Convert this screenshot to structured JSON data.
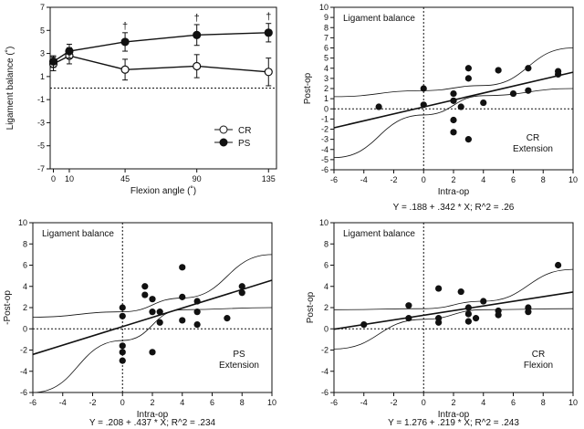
{
  "chart_data": [
    {
      "type": "line",
      "id": "p1",
      "xlabel": "Flexion angle (˚)",
      "ylabel": "Ligament balance (˚)",
      "xlim": [
        -2,
        140
      ],
      "ylim": [
        -7,
        7
      ],
      "xticks": [
        0,
        10,
        45,
        90,
        135
      ],
      "yticks": [
        -7,
        -5,
        -3,
        -1,
        1,
        3,
        5,
        7
      ],
      "zero_line": true,
      "legend": "bottom-right",
      "series": [
        {
          "name": "CR",
          "marker": "open-circle",
          "x": [
            0,
            10,
            45,
            90,
            135
          ],
          "y": [
            2.1,
            2.8,
            1.6,
            1.9,
            1.4
          ],
          "err": [
            0.6,
            0.7,
            0.9,
            1.0,
            1.2
          ]
        },
        {
          "name": "PS",
          "marker": "filled-circle",
          "x": [
            0,
            10,
            45,
            90,
            135
          ],
          "y": [
            2.3,
            3.2,
            4.0,
            4.6,
            4.8
          ],
          "err": [
            0.5,
            0.6,
            0.8,
            0.9,
            0.8
          ]
        }
      ],
      "annotations": [
        {
          "x": 45,
          "text": "†"
        },
        {
          "x": 90,
          "text": "†"
        },
        {
          "x": 135,
          "text": "†"
        }
      ]
    },
    {
      "type": "scatter",
      "id": "p2",
      "title": "Ligament balance",
      "xlabel": "Intra-op",
      "ylabel": "Post-op",
      "group_label_1": "CR",
      "group_label_2": "Extension",
      "equation": "Y = .188 + .342 * X; R^2 = .26",
      "xlim": [
        -6,
        10
      ],
      "ylim": [
        -6,
        10
      ],
      "xticks": [
        -6,
        -4,
        -2,
        0,
        2,
        4,
        6,
        8,
        10
      ],
      "yticks": [
        -6,
        -5,
        -4,
        -3,
        -2,
        -1,
        0,
        1,
        2,
        3,
        4,
        5,
        6,
        7,
        8,
        9,
        10
      ],
      "fit": {
        "intercept": 0.188,
        "slope": 0.342
      },
      "ci_upper": [
        [
          -6,
          1.2
        ],
        [
          0,
          1.8
        ],
        [
          4,
          2.3
        ],
        [
          10,
          6.0
        ]
      ],
      "ci_lower": [
        [
          -6,
          -4.8
        ],
        [
          0,
          -0.6
        ],
        [
          4,
          1.3
        ],
        [
          10,
          2.0
        ]
      ],
      "points": [
        [
          -3,
          0.2
        ],
        [
          0,
          2.0
        ],
        [
          0,
          0.4
        ],
        [
          2,
          1.5
        ],
        [
          2,
          0.8
        ],
        [
          2,
          -1.1
        ],
        [
          2,
          -2.3
        ],
        [
          2.5,
          0.2
        ],
        [
          3,
          4.0
        ],
        [
          3,
          3.0
        ],
        [
          3,
          -3.0
        ],
        [
          4,
          0.6
        ],
        [
          5,
          3.8
        ],
        [
          6,
          1.5
        ],
        [
          7,
          4.0
        ],
        [
          7,
          1.8
        ],
        [
          9,
          3.7
        ],
        [
          9,
          3.4
        ]
      ]
    },
    {
      "type": "scatter",
      "id": "p3",
      "title": "Ligament balance",
      "xlabel": "Intra-op",
      "ylabel": "-Post-op",
      "group_label_1": "PS",
      "group_label_2": "Extension",
      "equation": "Y = .208 + .437 * X; R^2 = .234",
      "xlim": [
        -6,
        10
      ],
      "ylim": [
        -6,
        10
      ],
      "xticks": [
        -6,
        -4,
        -2,
        0,
        2,
        4,
        6,
        8,
        10
      ],
      "yticks": [
        -6,
        -4,
        -2,
        0,
        2,
        4,
        6,
        8,
        10
      ],
      "fit": {
        "intercept": 0.208,
        "slope": 0.437
      },
      "ci_upper": [
        [
          -6,
          1.1
        ],
        [
          0,
          1.6
        ],
        [
          4,
          2.9
        ],
        [
          10,
          7.0
        ]
      ],
      "ci_lower": [
        [
          -6,
          -6.0
        ],
        [
          0,
          -1.1
        ],
        [
          4,
          1.8
        ],
        [
          10,
          2.0
        ]
      ],
      "points": [
        [
          0,
          2.0
        ],
        [
          0,
          1.2
        ],
        [
          0,
          -1.6
        ],
        [
          0,
          -2.2
        ],
        [
          0,
          -3.0
        ],
        [
          1.5,
          4.0
        ],
        [
          1.5,
          3.2
        ],
        [
          2,
          2.8
        ],
        [
          2,
          1.6
        ],
        [
          2,
          -2.2
        ],
        [
          2.5,
          1.6
        ],
        [
          2.5,
          0.6
        ],
        [
          4,
          5.8
        ],
        [
          4,
          3.0
        ],
        [
          4,
          0.8
        ],
        [
          5,
          2.6
        ],
        [
          5,
          1.6
        ],
        [
          5,
          0.4
        ],
        [
          7,
          1.0
        ],
        [
          8,
          4.0
        ],
        [
          8,
          3.4
        ]
      ]
    },
    {
      "type": "scatter",
      "id": "p4",
      "title": "Ligament balance",
      "xlabel": "Intra-op",
      "ylabel": "Post-op",
      "group_label_1": "CR",
      "group_label_2": "Flexion",
      "equation": "Y = 1.276 + .219 * X; R^2 = .243",
      "xlim": [
        -6,
        10
      ],
      "ylim": [
        -6,
        10
      ],
      "xticks": [
        -6,
        -4,
        -2,
        0,
        2,
        4,
        6,
        8,
        10
      ],
      "yticks": [
        -6,
        -4,
        -2,
        0,
        2,
        4,
        6,
        8,
        10
      ],
      "fit": {
        "intercept": 1.276,
        "slope": 0.219
      },
      "ci_upper": [
        [
          -6,
          1.8
        ],
        [
          0,
          1.9
        ],
        [
          4,
          2.6
        ],
        [
          10,
          5.6
        ]
      ],
      "ci_lower": [
        [
          -6,
          -1.9
        ],
        [
          0,
          0.9
        ],
        [
          4,
          1.8
        ],
        [
          10,
          1.9
        ]
      ],
      "points": [
        [
          -4,
          0.4
        ],
        [
          -1,
          2.2
        ],
        [
          -1,
          1.0
        ],
        [
          1,
          3.8
        ],
        [
          1,
          1.0
        ],
        [
          1,
          0.6
        ],
        [
          2.5,
          3.5
        ],
        [
          3,
          2.0
        ],
        [
          3,
          1.4
        ],
        [
          3,
          0.7
        ],
        [
          3.5,
          1.0
        ],
        [
          4,
          2.6
        ],
        [
          5,
          1.7
        ],
        [
          5,
          1.3
        ],
        [
          7,
          2.0
        ],
        [
          7,
          1.6
        ],
        [
          9,
          6.0
        ]
      ]
    }
  ]
}
